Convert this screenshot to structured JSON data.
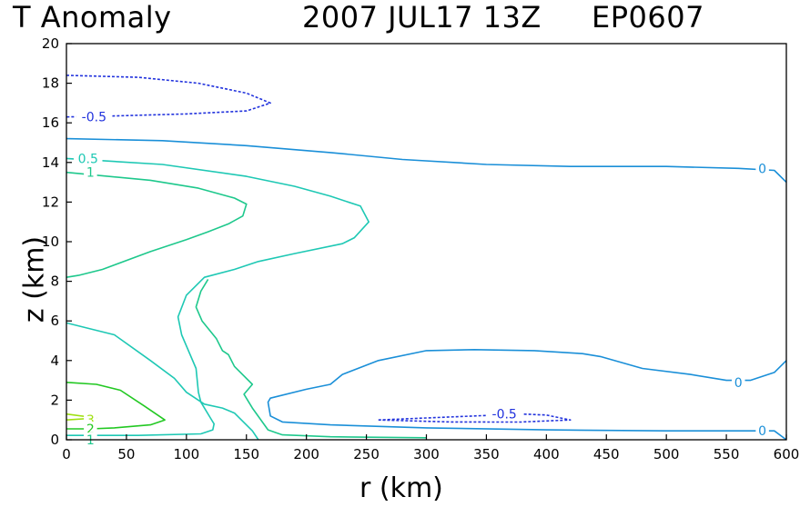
{
  "header": {
    "title_left": "T Anomaly",
    "title_time": "2007 JUL17 13Z",
    "title_storm": "EP0607"
  },
  "chart_data": {
    "type": "contour",
    "title": "T Anomaly   2007 JUL17 13Z   EP0607",
    "xlabel": "r (km)",
    "ylabel": "z (km)",
    "xlim": [
      0,
      600
    ],
    "ylim": [
      0,
      20
    ],
    "xticks": [
      0,
      50,
      100,
      150,
      200,
      250,
      300,
      350,
      400,
      450,
      500,
      550,
      600
    ],
    "yticks": [
      0,
      2,
      4,
      6,
      8,
      10,
      12,
      14,
      16,
      18,
      20
    ],
    "colors": {
      "neg0_5": "#2233dd",
      "zero": "#1a8fd8",
      "pos0_5": "#1ec8b4",
      "pos1": "#1ec88c",
      "pos2": "#22c822",
      "pos3": "#9ee010",
      "frame": "#000000"
    },
    "contours": [
      {
        "level": "-0.5",
        "dashed": true,
        "color_key": "neg0_5",
        "points": [
          [
            0,
            18.4
          ],
          [
            60,
            18.3
          ],
          [
            110,
            18.0
          ],
          [
            150,
            17.5
          ],
          [
            170,
            17.0
          ],
          [
            150,
            16.6
          ],
          [
            100,
            16.45
          ],
          [
            40,
            16.35
          ],
          [
            0,
            16.3
          ]
        ]
      },
      {
        "level": "-0.5",
        "dashed": true,
        "color_key": "neg0_5",
        "points": [
          [
            260,
            1.0
          ],
          [
            300,
            1.1
          ],
          [
            340,
            1.2
          ],
          [
            380,
            1.3
          ],
          [
            400,
            1.25
          ],
          [
            420,
            1.0
          ],
          [
            380,
            0.9
          ],
          [
            320,
            0.9
          ],
          [
            260,
            1.0
          ]
        ]
      },
      {
        "level": "0",
        "dashed": false,
        "color_key": "zero",
        "points": [
          [
            0,
            15.2
          ],
          [
            80,
            15.1
          ],
          [
            150,
            14.85
          ],
          [
            220,
            14.5
          ],
          [
            280,
            14.15
          ],
          [
            350,
            13.9
          ],
          [
            420,
            13.8
          ],
          [
            500,
            13.8
          ],
          [
            560,
            13.7
          ],
          [
            590,
            13.6
          ],
          [
            600,
            13.0
          ]
        ]
      },
      {
        "level": "0",
        "dashed": false,
        "color_key": "zero",
        "points": [
          [
            600,
            4.0
          ],
          [
            590,
            3.4
          ],
          [
            570,
            3.0
          ],
          [
            550,
            3.0
          ],
          [
            520,
            3.3
          ],
          [
            480,
            3.6
          ],
          [
            445,
            4.2
          ],
          [
            430,
            4.35
          ],
          [
            390,
            4.5
          ],
          [
            340,
            4.55
          ],
          [
            300,
            4.5
          ],
          [
            260,
            4.0
          ],
          [
            230,
            3.3
          ],
          [
            220,
            2.8
          ],
          [
            200,
            2.55
          ],
          [
            170,
            2.1
          ],
          [
            168,
            1.9
          ],
          [
            170,
            1.2
          ],
          [
            180,
            0.9
          ],
          [
            220,
            0.75
          ],
          [
            300,
            0.6
          ],
          [
            400,
            0.5
          ],
          [
            500,
            0.45
          ],
          [
            560,
            0.45
          ],
          [
            590,
            0.45
          ],
          [
            600,
            0.0
          ]
        ]
      },
      {
        "level": "0.5",
        "dashed": false,
        "color_key": "pos0_5",
        "points": [
          [
            0,
            14.2
          ],
          [
            80,
            13.9
          ],
          [
            150,
            13.3
          ],
          [
            190,
            12.8
          ],
          [
            220,
            12.3
          ],
          [
            245,
            11.8
          ],
          [
            252,
            11.0
          ],
          [
            240,
            10.2
          ],
          [
            230,
            9.9
          ],
          [
            190,
            9.4
          ],
          [
            160,
            9.0
          ],
          [
            140,
            8.6
          ],
          [
            115,
            8.2
          ],
          [
            100,
            7.3
          ],
          [
            93,
            6.2
          ],
          [
            96,
            5.3
          ],
          [
            108,
            3.6
          ],
          [
            110,
            2.4
          ],
          [
            112,
            1.9
          ],
          [
            120,
            1.1
          ],
          [
            123,
            0.8
          ],
          [
            122,
            0.5
          ],
          [
            112,
            0.3
          ],
          [
            60,
            0.22
          ],
          [
            0,
            0.22
          ]
        ]
      },
      {
        "level": "0.5",
        "dashed": false,
        "color_key": "pos0_5",
        "points": [
          [
            0,
            5.9
          ],
          [
            40,
            5.3
          ],
          [
            70,
            4.0
          ],
          [
            90,
            3.1
          ],
          [
            100,
            2.4
          ],
          [
            115,
            1.8
          ],
          [
            130,
            1.6
          ],
          [
            140,
            1.35
          ],
          [
            155,
            0.45
          ],
          [
            160,
            0.0
          ]
        ]
      },
      {
        "level": "1",
        "dashed": false,
        "color_key": "pos1",
        "points": [
          [
            0,
            13.5
          ],
          [
            70,
            13.1
          ],
          [
            110,
            12.7
          ],
          [
            140,
            12.2
          ],
          [
            150,
            11.9
          ],
          [
            147,
            11.3
          ],
          [
            135,
            10.9
          ],
          [
            118,
            10.5
          ],
          [
            100,
            10.1
          ],
          [
            70,
            9.5
          ],
          [
            30,
            8.6
          ],
          [
            10,
            8.3
          ],
          [
            0,
            8.2
          ]
        ]
      },
      {
        "level": "1",
        "dashed": false,
        "color_key": "pos1",
        "points": [
          [
            300,
            0.1
          ],
          [
            220,
            0.15
          ],
          [
            180,
            0.25
          ],
          [
            175,
            0.35
          ],
          [
            168,
            0.5
          ],
          [
            155,
            1.6
          ],
          [
            148,
            2.3
          ],
          [
            155,
            2.8
          ],
          [
            140,
            3.7
          ],
          [
            135,
            4.3
          ],
          [
            130,
            4.5
          ],
          [
            125,
            5.1
          ],
          [
            113,
            6.0
          ],
          [
            108,
            6.7
          ],
          [
            112,
            7.5
          ],
          [
            118,
            8.1
          ]
        ]
      },
      {
        "level": "2",
        "dashed": false,
        "color_key": "pos2",
        "points": [
          [
            0,
            2.9
          ],
          [
            25,
            2.8
          ],
          [
            45,
            2.5
          ],
          [
            65,
            1.7
          ],
          [
            82,
            1.0
          ],
          [
            70,
            0.75
          ],
          [
            40,
            0.6
          ],
          [
            20,
            0.55
          ],
          [
            0,
            0.55
          ]
        ]
      },
      {
        "level": "3",
        "dashed": false,
        "color_key": "pos3",
        "points": [
          [
            0,
            1.3
          ],
          [
            25,
            1.1
          ],
          [
            0,
            1.0
          ]
        ]
      }
    ],
    "contour_labels": [
      {
        "text": "-0.5",
        "x": 23,
        "y": 16.3,
        "color_key": "neg0_5"
      },
      {
        "text": "-0.5",
        "x": 365,
        "y": 1.3,
        "color_key": "neg0_5"
      },
      {
        "text": "0",
        "x": 580,
        "y": 13.7,
        "color_key": "zero"
      },
      {
        "text": "0",
        "x": 560,
        "y": 2.9,
        "color_key": "zero"
      },
      {
        "text": "0",
        "x": 580,
        "y": 0.45,
        "color_key": "zero"
      },
      {
        "text": "0.5",
        "x": 18,
        "y": 14.2,
        "color_key": "pos0_5"
      },
      {
        "text": "1",
        "x": 20,
        "y": 13.5,
        "color_key": "pos1"
      },
      {
        "text": "3",
        "x": 20,
        "y": 1.0,
        "color_key": "pos3"
      },
      {
        "text": "2",
        "x": 20,
        "y": 0.55,
        "color_key": "pos2"
      },
      {
        "text": "1",
        "x": 20,
        "y": 0.0,
        "color_key": "pos1"
      }
    ]
  }
}
